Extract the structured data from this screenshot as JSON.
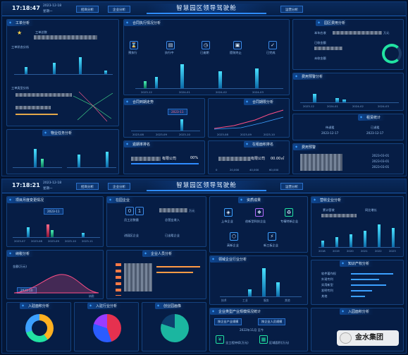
{
  "top": {
    "time": "17:18:47",
    "date": "2023-12-18",
    "week": "星期一",
    "title": "智慧园区领导驾驶舱",
    "nav_left": [
      "招商分析",
      "企业分析"
    ],
    "nav_right": "运营分析",
    "panels": {
      "workorder": {
        "title": "工单分析",
        "sub1": "工单总数",
        "sub2": "工单状态分析",
        "sub3": "工单类型分析"
      },
      "contract": {
        "title": "合同执行情况分析",
        "items": [
          "预执行",
          "执行中",
          "已逾期",
          "提前终止",
          "已完成"
        ],
        "ticks": [
          "2023-12",
          "2024-01",
          "2024-02",
          "2024-03"
        ]
      },
      "campus_fee": {
        "title": "园区费用分析",
        "l1": "本年应收",
        "l2": "已收金额",
        "l3": "万元",
        "l4": "未收金额"
      },
      "fee_warn": {
        "title": "费用预警分析",
        "ticks": [
          "2023-12",
          "2024-01",
          "2024-02",
          "2024-03"
        ]
      },
      "material": {
        "title": "物业任务分析"
      },
      "contract_expire": {
        "title": "合同到期走势",
        "badge": "2023-11",
        "ticks": [
          "2023-08",
          "2023-09",
          "2023-10"
        ]
      },
      "contract_analysis": {
        "title": "合同期限分析",
        "ticks": [
          "2023-08",
          "2023-09",
          "2023-10"
        ]
      },
      "rent_stat": {
        "title": "租赁统计",
        "l1": "待退租",
        "l2": "已退租",
        "d1": "2023-12-17",
        "d2": "2023-12-17"
      },
      "lease_rank": {
        "title": "逾期率排名",
        "row1": "有限公司",
        "pct": "00%"
      },
      "rent_rank": {
        "title": "在租面积排名",
        "row1": "有限公司",
        "val": "00.00㎡",
        "ticks": [
          "0",
          "20,000",
          "40,000",
          "60,000"
        ]
      },
      "fee_pred": {
        "title": "费用预警",
        "d1": "2023-03-01",
        "d2": "2023-03-01",
        "d3": "2023-03-01"
      }
    }
  },
  "bottom": {
    "time": "17:18:21",
    "date": "2023-12-18",
    "week": "星期一",
    "title": "智慧园区领导驾驶舱",
    "nav_left": [
      "招商分析",
      "企业分析"
    ],
    "nav_right": "运营分析",
    "panels": {
      "project": {
        "title": "项目月度变更情况",
        "badge": "2023-11",
        "ticks": [
          "2023-07",
          "2023-08",
          "2023-09",
          "2023-10",
          "2023-11"
        ]
      },
      "inpark": {
        "title": "在园企业",
        "counts": [
          "0",
          "1"
        ],
        "l1": "员工总数量",
        "l2": "总营业收入",
        "l3": "万元",
        "l4": "进园区企业",
        "l5": "已出租企业"
      },
      "qualify": {
        "title": "资质成果",
        "items": [
          "上市企业",
          "创新型科技企业",
          "专精特新企业",
          "高新企业",
          "新三板企业"
        ]
      },
      "industry": {
        "title": "营收企业分析",
        "l1": "累计营收",
        "l2": "同比增长",
        "ticks": [
          "2018",
          "2019",
          "2020",
          "2021",
          "2022",
          "2023"
        ]
      },
      "tax": {
        "title": "纳税分析",
        "l1": "金额(万元)",
        "badge": "2023-10",
        "tick": "纳税"
      },
      "staff": {
        "title": "企业人员分析"
      },
      "domain_rank": {
        "title": "领域企业行业分析",
        "ticks": [
          "技术",
          "工业",
          "服务",
          "其他"
        ]
      },
      "ip": {
        "title": "知识产权分析",
        "rows": [
          "软件著作权",
          "外观专利",
          "实用新型",
          "发明专利",
          "其他"
        ]
      },
      "intake": {
        "title": "入驻面积分析"
      },
      "trade": {
        "title": "入驻行业分析"
      },
      "creative": {
        "title": "创业园画像"
      },
      "enterprise": {
        "title": "企业类型产业规模情况统计",
        "tabs": [
          "按企业产业规模",
          "按企业人员规模"
        ],
        "cap": "2022年11月 至今",
        "foot1": "全工程持续(万元)",
        "foot2": "区域面积(万元)"
      },
      "invest": {
        "title": "入园面积分析"
      }
    }
  },
  "watermark": "金水集团",
  "chart_data": [
    {
      "type": "bar",
      "title": "合同执行情况分析",
      "categories": [
        "2023-12",
        "2024-01",
        "2024-02",
        "2024-03"
      ],
      "series": [
        {
          "values": [
            3,
            9,
            5,
            6
          ]
        },
        {
          "values": [
            1,
            2,
            1,
            1
          ]
        }
      ]
    },
    {
      "type": "bar",
      "title": "营收企业分析",
      "categories": [
        "2018",
        "2019",
        "2020",
        "2021",
        "2022",
        "2023"
      ],
      "series": [
        {
          "values": [
            2,
            3,
            4,
            5,
            7,
            6
          ]
        }
      ]
    },
    {
      "type": "pie",
      "title": "入驻面积分析",
      "values": [
        70,
        30
      ]
    },
    {
      "type": "pie",
      "title": "入驻行业分析",
      "values": [
        45,
        35,
        20
      ]
    },
    {
      "type": "pie",
      "title": "创业园画像",
      "values": [
        80,
        20
      ]
    }
  ],
  "colors": {
    "bg": "#041737",
    "panel": "#061d45",
    "accent": "#2e8bff",
    "green": "#21e3a2",
    "pink": "#ff4f86"
  }
}
